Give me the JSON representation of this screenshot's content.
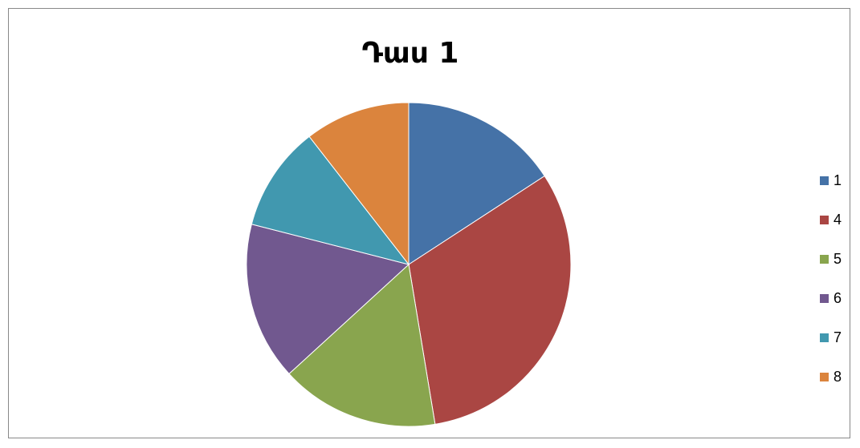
{
  "chart_data": {
    "type": "pie",
    "title": "Դաս 1",
    "categories": [
      "1",
      "4",
      "5",
      "6",
      "7",
      "8"
    ],
    "values": [
      15.8,
      31.6,
      15.8,
      15.8,
      10.5,
      10.5
    ],
    "colors": [
      "#4572A7",
      "#AA4643",
      "#89A54E",
      "#71588F",
      "#4198AF",
      "#DB843D"
    ],
    "legend_position": "right"
  }
}
